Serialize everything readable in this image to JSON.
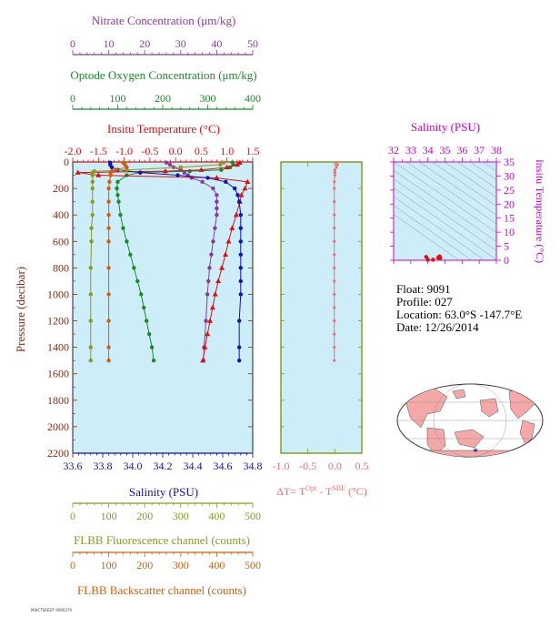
{
  "colors": {
    "nitrate": "#8b3a9a",
    "oxygen": "#1a8a2a",
    "temperature": "#dd1111",
    "salinity": "#1111bb",
    "fluorescence": "#8a9a22",
    "backscatter": "#d06010",
    "delta_t": "#f07070",
    "ts_axis": "#cc00cc",
    "plot_bg": "#cdeef8"
  },
  "info": {
    "float": "Float:  9091",
    "profile": "Profile:  027",
    "location": "Location:  63.0°S  -147.7°E",
    "date": "Date:  12/26/2014"
  },
  "footer_text": "MWCTSREDT 9090270",
  "chart_data": [
    {
      "type": "line",
      "axes": {
        "nitrate": {
          "label": "Nitrate Concentration (μm/kg)",
          "range": [
            0,
            50
          ],
          "ticks": [
            "0",
            "10",
            "20",
            "30",
            "40",
            "50"
          ]
        },
        "oxygen": {
          "label": "Optode Oxygen Concentration (μm/kg)",
          "range": [
            0,
            400
          ],
          "ticks": [
            "0",
            "100",
            "200",
            "300",
            "400"
          ]
        },
        "temperature": {
          "label": "Insitu Temperature (°C)",
          "range": [
            -2.0,
            1.5
          ],
          "ticks": [
            "-2.0",
            "-1.5",
            "-1.0",
            "-0.5",
            "0.0",
            "0.5",
            "1.0",
            "1.5"
          ]
        },
        "salinity": {
          "label": "Salinity (PSU)",
          "range": [
            33.6,
            34.8
          ],
          "ticks": [
            "33.6",
            "33.8",
            "34.0",
            "34.2",
            "34.4",
            "34.6",
            "34.8"
          ]
        },
        "fluorescence": {
          "label": "FLBB Fluorescence channel (counts)",
          "range": [
            0,
            500
          ],
          "ticks": [
            "0",
            "100",
            "200",
            "300",
            "400",
            "500"
          ]
        },
        "backscatter": {
          "label": "FLBB Backscatter channel (counts)",
          "range": [
            0,
            500
          ],
          "ticks": [
            "0",
            "100",
            "200",
            "300",
            "400",
            "500"
          ]
        },
        "pressure": {
          "label": "Pressure (decibar)",
          "range": [
            0,
            2200
          ],
          "ticks": [
            "0",
            "200",
            "400",
            "600",
            "800",
            "1000",
            "1200",
            "1400",
            "1600",
            "1800",
            "2000",
            "2200"
          ]
        }
      },
      "series": [
        {
          "key": "nitrate",
          "marker": "dot",
          "pressure": [
            5,
            20,
            40,
            60,
            80,
            100,
            120,
            150,
            200,
            250,
            300,
            350,
            400,
            500,
            600,
            700,
            800,
            900,
            1000,
            1200,
            1400,
            1500
          ],
          "values": [
            26,
            27,
            28,
            30,
            31,
            32,
            33,
            36,
            39,
            40,
            40,
            40,
            40,
            39.5,
            39,
            38.5,
            38,
            37.7,
            37.4,
            37,
            36.5,
            36.3
          ]
        },
        {
          "key": "oxygen",
          "marker": "dot",
          "pressure": [
            5,
            20,
            40,
            60,
            70,
            80,
            100,
            150,
            200,
            250,
            300,
            400,
            500,
            600,
            700,
            800,
            900,
            1000,
            1100,
            1200,
            1300,
            1400,
            1500
          ],
          "values": [
            355,
            357,
            350,
            330,
            260,
            150,
            120,
            100,
            98,
            100,
            102,
            106,
            112,
            120,
            128,
            136,
            144,
            152,
            158,
            164,
            170,
            176,
            180
          ]
        },
        {
          "key": "temperature",
          "marker": "triangle",
          "pressure": [
            5,
            20,
            40,
            60,
            70,
            80,
            100,
            120,
            150,
            200,
            250,
            300,
            400,
            500,
            600,
            700,
            800,
            900,
            1000,
            1100,
            1200,
            1300,
            1400,
            1500
          ],
          "values": [
            1.25,
            1.2,
            1.0,
            0.5,
            -0.2,
            -1.9,
            -1.5,
            0.8,
            1.4,
            1.35,
            1.28,
            1.25,
            1.18,
            1.1,
            1.03,
            0.97,
            0.9,
            0.83,
            0.77,
            0.72,
            0.67,
            0.62,
            0.57,
            0.53
          ]
        },
        {
          "key": "salinity",
          "marker": "dot",
          "pressure": [
            5,
            20,
            40,
            60,
            80,
            100,
            120,
            150,
            200,
            250,
            300,
            400,
            500,
            600,
            700,
            800,
            900,
            1000,
            1200,
            1400,
            1500
          ],
          "values": [
            33.85,
            33.85,
            33.86,
            33.9,
            34.05,
            34.3,
            34.5,
            34.62,
            34.68,
            34.7,
            34.71,
            34.72,
            34.72,
            34.72,
            34.72,
            34.72,
            34.72,
            34.72,
            34.71,
            34.71,
            34.71
          ]
        },
        {
          "key": "fluorescence",
          "marker": "dot",
          "pressure": [
            5,
            20,
            40,
            60,
            70,
            80,
            100,
            150,
            200,
            300,
            400,
            500,
            600,
            800,
            1000,
            1200,
            1400,
            1500
          ],
          "values": [
            420,
            410,
            300,
            150,
            60,
            55,
            55,
            55,
            55,
            55,
            55,
            52,
            52,
            50,
            50,
            50,
            50,
            50
          ]
        },
        {
          "key": "backscatter",
          "marker": "dot",
          "pressure": [
            5,
            20,
            40,
            60,
            70,
            80,
            100,
            150,
            200,
            300,
            400,
            500,
            600,
            800,
            1000,
            1200,
            1400,
            1500
          ],
          "values": [
            140,
            145,
            150,
            120,
            110,
            105,
            105,
            102,
            100,
            100,
            100,
            100,
            100,
            100,
            100,
            100,
            100,
            100
          ]
        }
      ]
    },
    {
      "type": "line",
      "xlabel": "ΔT= T^Opt - T^SBE (°C)",
      "xlim": [
        -1.0,
        0.5
      ],
      "xticks": [
        "-1.0",
        "-0.5",
        "0.0",
        "0.5"
      ],
      "series": [
        {
          "key": "delta_t",
          "marker": "dot",
          "pressure": [
            5,
            20,
            40,
            60,
            80,
            100,
            150,
            200,
            300,
            400,
            500,
            600,
            700,
            800,
            900,
            1000,
            1100,
            1200,
            1300,
            1400,
            1500
          ],
          "values": [
            0.02,
            0.05,
            0.03,
            0.0,
            0.0,
            0.0,
            -0.01,
            -0.01,
            -0.01,
            -0.01,
            -0.01,
            -0.01,
            -0.01,
            -0.01,
            -0.01,
            -0.01,
            -0.01,
            -0.01,
            -0.01,
            -0.01,
            -0.01
          ]
        }
      ]
    },
    {
      "type": "scatter",
      "title": "Salinity (PSU)",
      "xticks": [
        "32",
        "33",
        "34",
        "35",
        "36",
        "37",
        "38"
      ],
      "xlim": [
        32,
        38
      ],
      "ylabel": "Insitu Temperature (°C)",
      "yticks": [
        "0",
        "5",
        "10",
        "15",
        "20",
        "25",
        "30",
        "35"
      ],
      "ylim": [
        0,
        35
      ],
      "points": {
        "salinity": [
          34.7,
          34.72,
          34.68,
          34.6,
          34.3,
          34.0,
          33.9
        ],
        "temperature": [
          0.6,
          1.0,
          1.4,
          0.9,
          -0.5,
          -1.5,
          1.2
        ]
      }
    }
  ]
}
